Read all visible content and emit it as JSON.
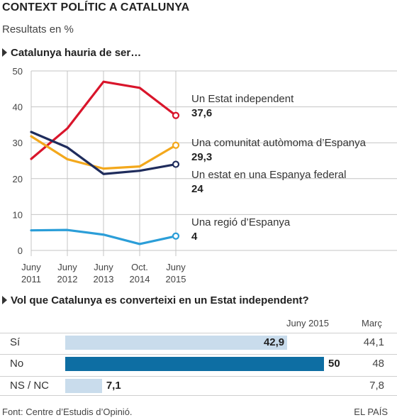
{
  "header": {
    "title": "CONTEXT POLÍTIC A CATALUNYA",
    "subtitle": "Resultats en %"
  },
  "chart_data": [
    {
      "type": "line",
      "title": "Catalunya hauria de ser…",
      "categories": [
        "Juny 2011",
        "Juny 2012",
        "Juny 2013",
        "Oct. 2014",
        "Juny 2015"
      ],
      "x_tick_lines": [
        [
          "Juny",
          "2011"
        ],
        [
          "Juny",
          "2012"
        ],
        [
          "Juny",
          "2013"
        ],
        [
          "Oct.",
          "2014"
        ],
        [
          "Juny",
          "2015"
        ]
      ],
      "yticks": [
        "0",
        "10",
        "20",
        "30",
        "40",
        "50"
      ],
      "ylim": [
        0,
        50
      ],
      "grid": true,
      "series": [
        {
          "name": "Un Estat independent",
          "label": "37,6",
          "color": "#d9152b",
          "values": [
            25.5,
            34.0,
            47.0,
            45.3,
            37.6
          ]
        },
        {
          "name": "Una comunitat autòmoma d’Espanya",
          "label": "29,3",
          "color": "#f3a81c",
          "values": [
            31.8,
            25.4,
            22.8,
            23.4,
            29.3
          ]
        },
        {
          "name": "Un estat en una Espanya federal",
          "label": "24",
          "color": "#1f2c5c",
          "values": [
            33.0,
            28.7,
            21.3,
            22.2,
            24.0
          ]
        },
        {
          "name": "Una regió d’Espanya",
          "label": "4",
          "color": "#2b9ed8",
          "values": [
            5.6,
            5.7,
            4.4,
            1.8,
            4.0
          ]
        }
      ]
    },
    {
      "type": "bar",
      "title": "Vol que Catalunya es converteixi en un Estat independent?",
      "columns": [
        "Juny 2015",
        "Març"
      ],
      "categories": [
        "Sí",
        "No",
        "NS / NC"
      ],
      "series": [
        {
          "name": "Juny 2015",
          "values": [
            42.9,
            50,
            7.1
          ],
          "labels": [
            "42,9",
            "50",
            "7,1"
          ],
          "colors": [
            "#c9dcec",
            "#0e6ea3",
            "#c9dcec"
          ]
        },
        {
          "name": "Març",
          "values": [
            44.1,
            48,
            7.8
          ],
          "labels": [
            "44,1",
            "48",
            "7,8"
          ]
        }
      ]
    }
  ],
  "footer": {
    "source": "Font: Centre d’Estudis d’Opinió.",
    "brand": "EL PAÍS"
  }
}
